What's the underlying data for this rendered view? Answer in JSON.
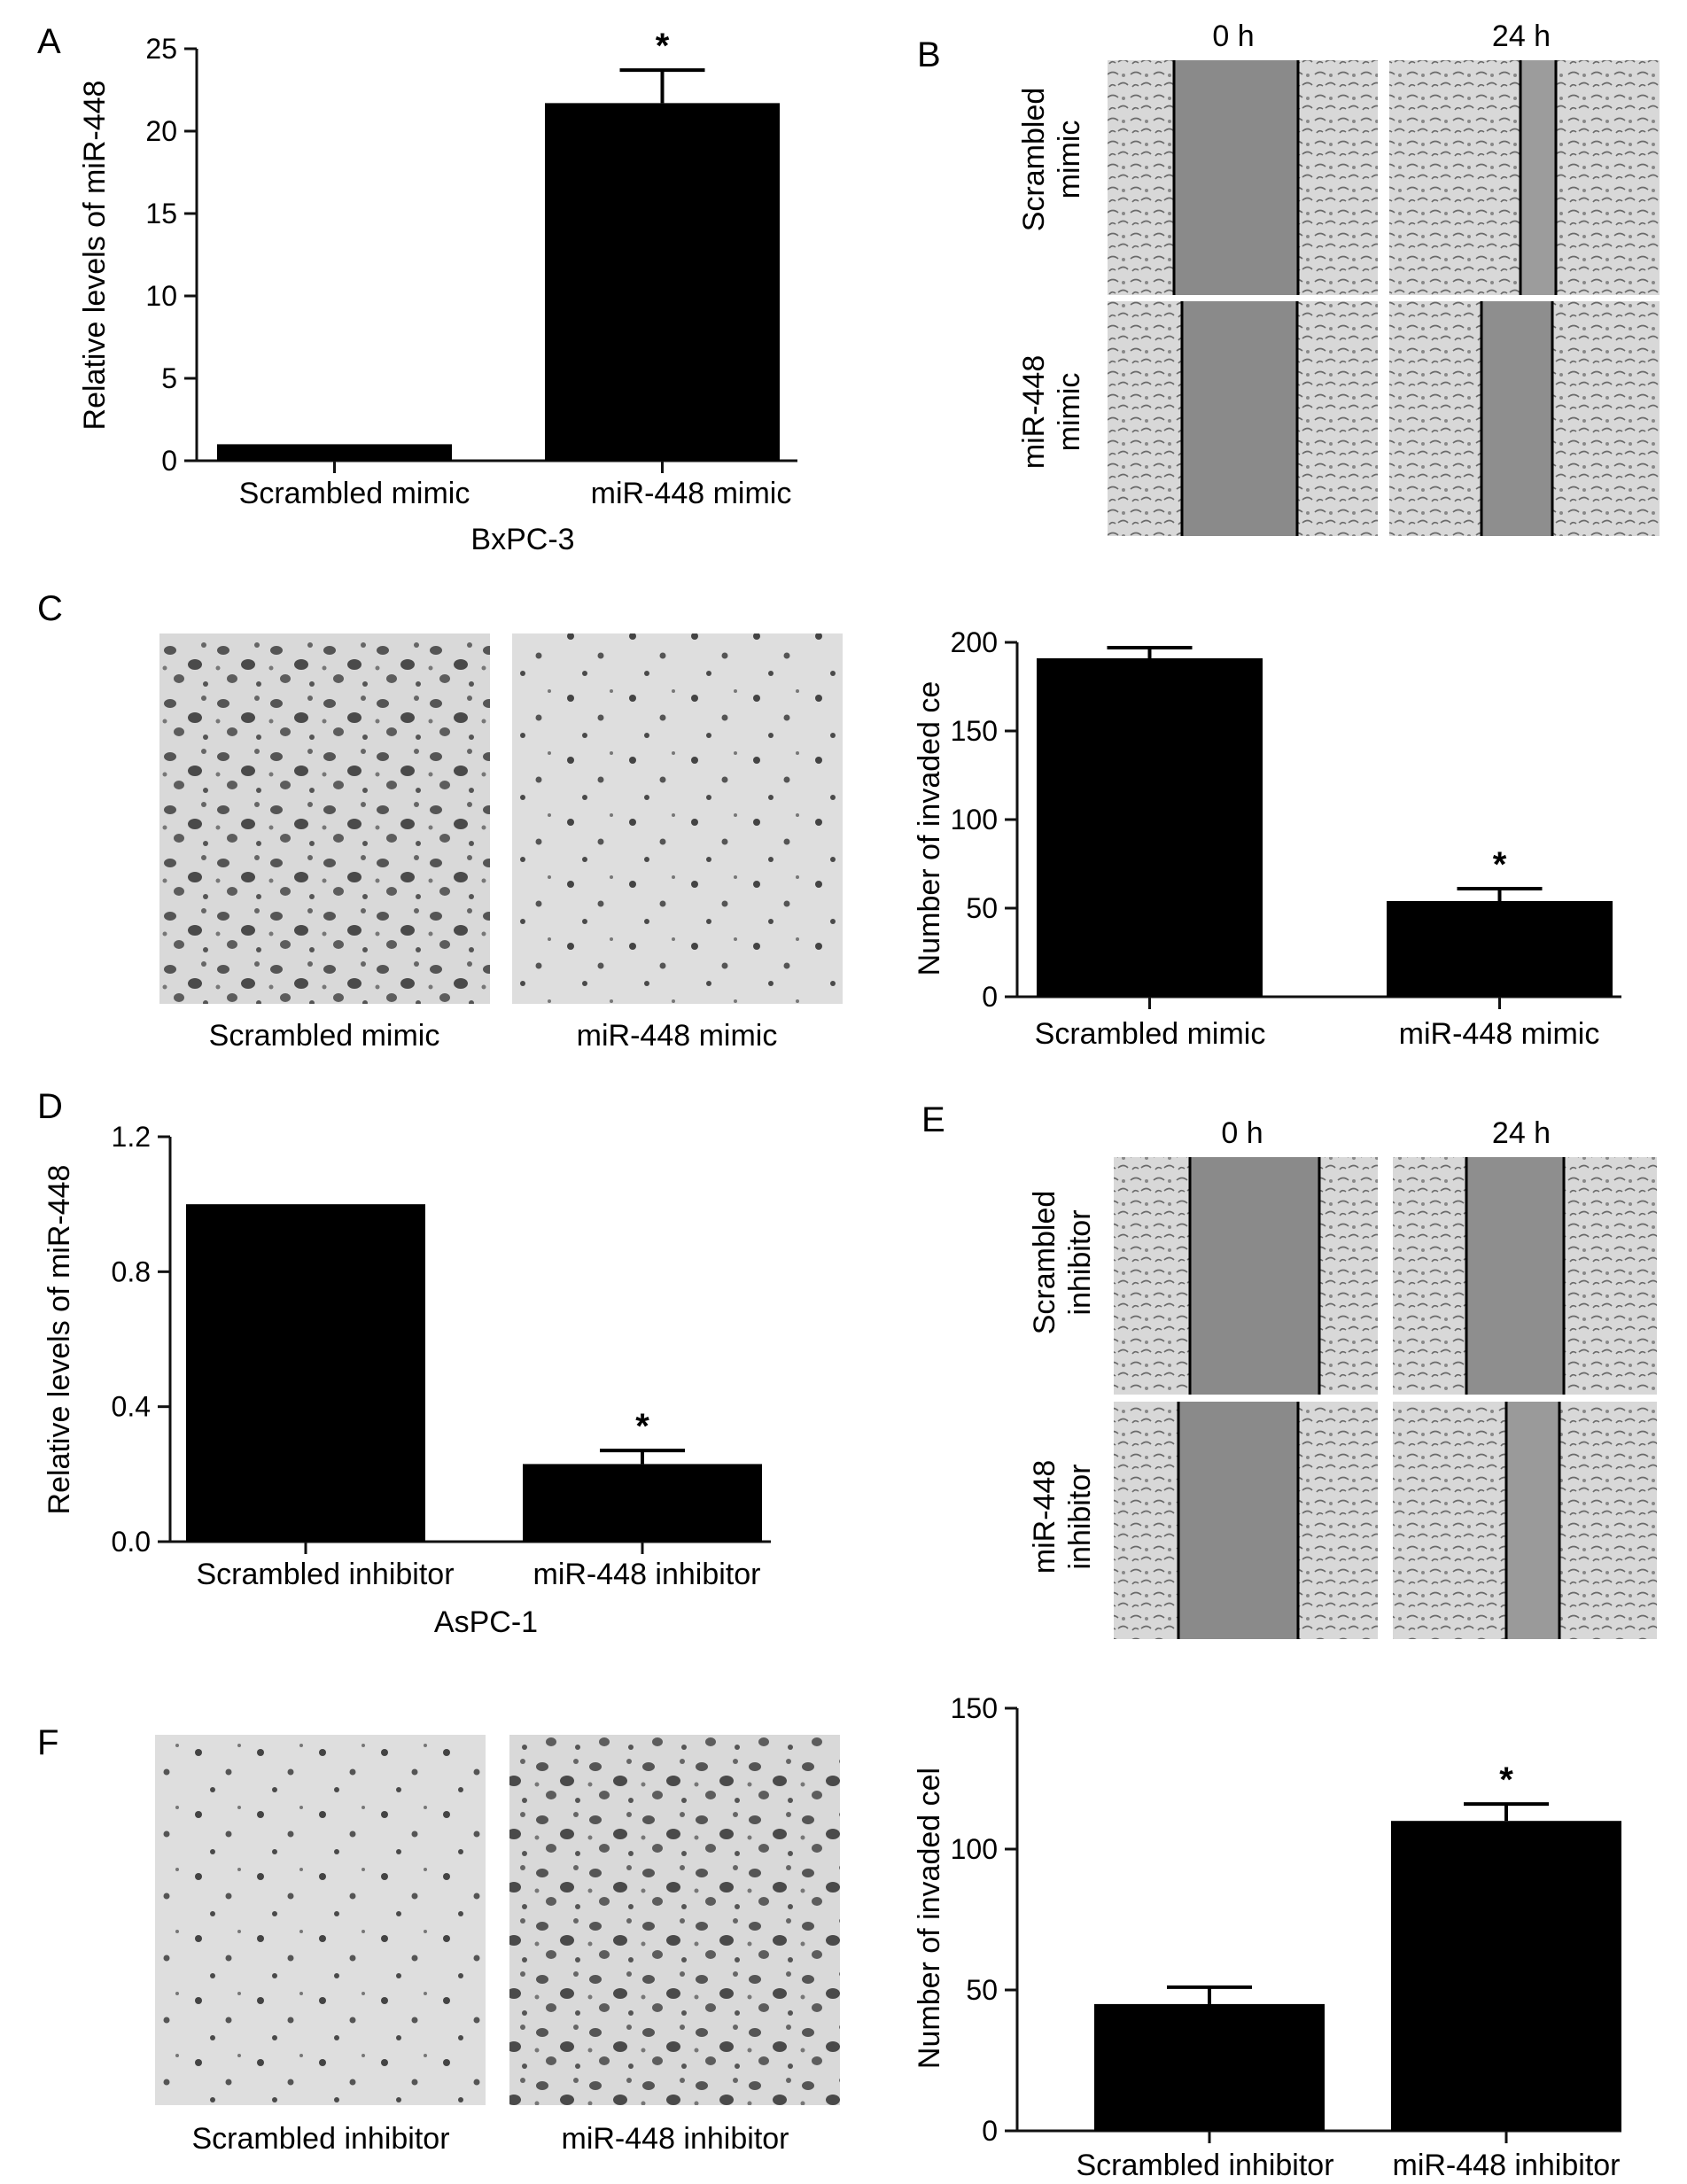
{
  "panel_letters": {
    "A": "A",
    "B": "B",
    "C": "C",
    "D": "D",
    "E": "E",
    "F": "F"
  },
  "micrographs": {
    "B": {
      "col_labels": [
        "0 h",
        "24 h"
      ],
      "row_labels": [
        [
          "Scrambled",
          "mimic"
        ],
        [
          "miR-448",
          "mimic"
        ]
      ],
      "description": "Wound-healing scratch assay, BxPC-3"
    },
    "C": {
      "captions": [
        "Scrambled mimic",
        "miR-448 mimic"
      ],
      "description": "Transwell invasion stained cells"
    },
    "E": {
      "col_labels": [
        "0 h",
        "24 h"
      ],
      "row_labels": [
        [
          "Scrambled",
          "inhibitor"
        ],
        [
          "miR-448",
          "inhibitor"
        ]
      ],
      "description": "Wound-healing scratch assay, AsPC-1"
    },
    "F": {
      "captions": [
        "Scrambled inhibitor",
        "miR-448 inhibitor"
      ],
      "description": "Transwell invasion stained cells"
    }
  },
  "colors": {
    "bar": "#000000",
    "axis": "#111111",
    "micro_bg": "#cfcfcf",
    "gap": "#8a8a8a"
  },
  "chart_data": [
    {
      "id": "A",
      "type": "bar",
      "categories": [
        "Scrambled mimic",
        "miR-448 mimic"
      ],
      "values": [
        1,
        21.7
      ],
      "errors": [
        0,
        2.0
      ],
      "significant": [
        false,
        true
      ],
      "ylabel": "Relative levels of miR-448",
      "xlabel": "BxPC-3",
      "ylim": [
        0,
        25
      ],
      "yticks": [
        "0",
        "5",
        "10",
        "15",
        "20",
        "25"
      ]
    },
    {
      "id": "C",
      "type": "bar",
      "categories": [
        "Scrambled mimic",
        "miR-448 mimic"
      ],
      "values": [
        191,
        54
      ],
      "errors": [
        6,
        7
      ],
      "significant": [
        false,
        true
      ],
      "ylabel": "Number of invaded ce",
      "xlabel": "",
      "ylim": [
        0,
        200
      ],
      "yticks": [
        "0",
        "50",
        "100",
        "150",
        "200"
      ]
    },
    {
      "id": "D",
      "type": "bar",
      "categories": [
        "Scrambled inhibitor",
        "miR-448 inhibitor"
      ],
      "values": [
        1.0,
        0.23
      ],
      "errors": [
        0,
        0.04
      ],
      "significant": [
        false,
        true
      ],
      "ylabel": "Relative levels of miR-448",
      "xlabel": "AsPC-1",
      "ylim": [
        0,
        1.2
      ],
      "yticks": [
        "0.0",
        "0.4",
        "0.8",
        "1.2"
      ]
    },
    {
      "id": "F",
      "type": "bar",
      "categories": [
        "Scrambled inhibitor",
        "miR-448 inhibitor"
      ],
      "values": [
        45,
        110
      ],
      "errors": [
        6,
        6
      ],
      "significant": [
        false,
        true
      ],
      "ylabel": "Number of invaded cel",
      "xlabel": "",
      "ylim": [
        0,
        150
      ],
      "yticks": [
        "0",
        "50",
        "100",
        "150"
      ]
    }
  ]
}
